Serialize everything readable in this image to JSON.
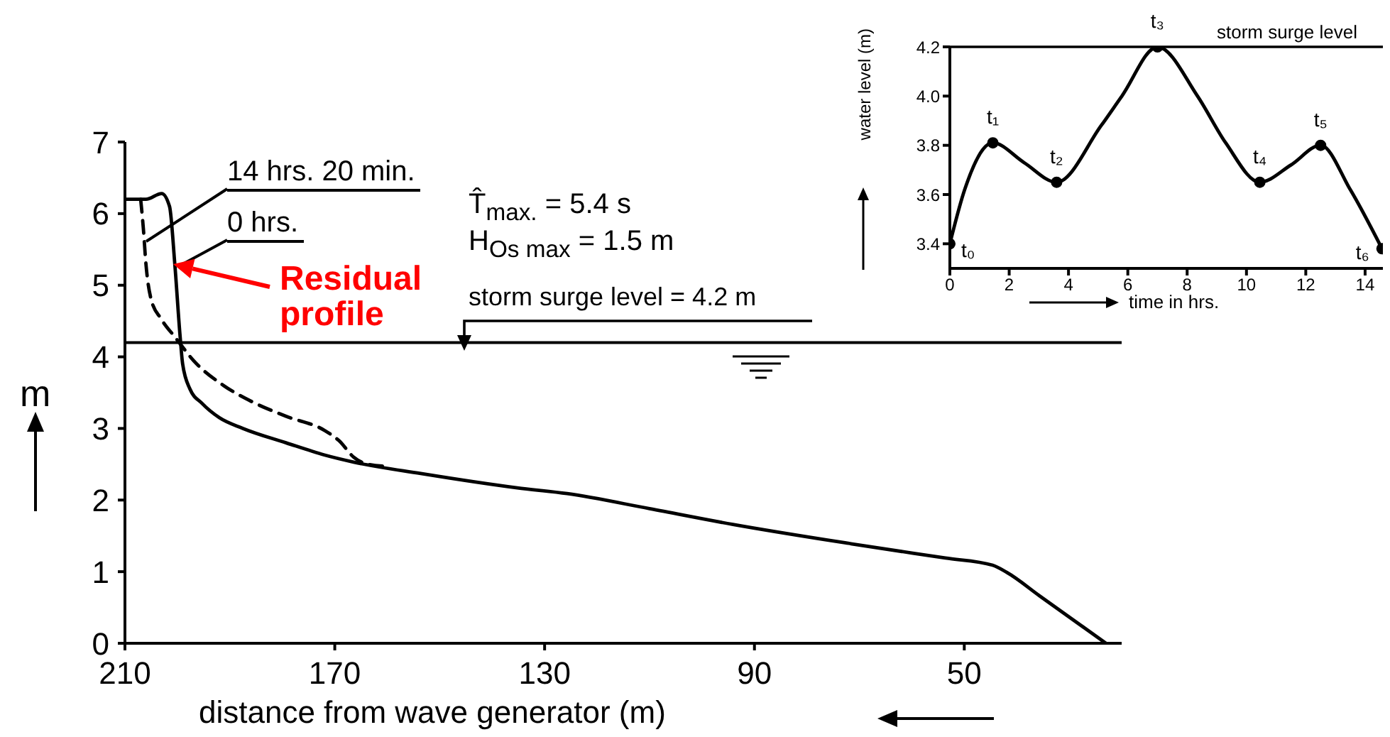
{
  "chart_data": [
    {
      "type": "line",
      "xlabel": "distance from wave generator (m)",
      "ylabel": "m",
      "xlim": [
        210,
        20
      ],
      "xticks": [
        210,
        170,
        130,
        90,
        50
      ],
      "ylim": [
        0,
        7
      ],
      "yticks": [
        0,
        1,
        2,
        3,
        4,
        5,
        6,
        7
      ],
      "grid": false,
      "legend": false,
      "marker": "none",
      "line_style": "solid",
      "series": [
        {
          "name": "14 hrs. 20 min.",
          "color": "#000000",
          "line_style": "dashed",
          "x": [
            207,
            206.5,
            206,
            205,
            203.1,
            200.4,
            196.7,
            191.2,
            185.7,
            179.3,
            171.9,
            169.2,
            166.4,
            163.7,
            160
          ],
          "values": [
            6.2,
            5.8,
            5.3,
            4.8,
            4.53,
            4.27,
            3.93,
            3.6,
            3.37,
            3.17,
            2.97,
            2.83,
            2.6,
            2.5,
            2.47
          ]
        },
        {
          "name": "0 hrs.",
          "color": "#000000",
          "x": [
            210,
            206,
            203,
            201.5,
            200.5,
            199.5,
            199,
            197.6,
            195.3,
            192,
            187.5,
            179.3,
            172,
            166.4,
            153.6,
            135.2,
            125.7,
            110,
            94.1,
            71.6,
            53.6,
            44.6,
            41.9,
            35.6,
            23
          ],
          "values": [
            6.2,
            6.2,
            6.28,
            6.1,
            5.3,
            4.3,
            3.9,
            3.55,
            3.35,
            3.15,
            3.0,
            2.8,
            2.63,
            2.53,
            2.37,
            2.17,
            2.09,
            1.88,
            1.66,
            1.39,
            1.19,
            1.09,
            0.99,
            0.66,
            0
          ]
        }
      ],
      "ref_lines": [
        {
          "axis": "y",
          "value": 4.2,
          "label": "storm surge level = 4.2 m"
        }
      ],
      "annotations": [
        "T̂$_{max.}$ = 5.4 s",
        "H$_{Os max}$ = 1.5 m",
        "Residual profile"
      ]
    },
    {
      "type": "line",
      "xlabel": "time in hrs.",
      "ylabel": "water level (m)",
      "xlim": [
        0,
        14.6
      ],
      "xticks": [
        0,
        2,
        4,
        6,
        8,
        10,
        12,
        14
      ],
      "ylim": [
        3.3,
        4.2
      ],
      "yticks": [
        3.4,
        3.6,
        3.8,
        {
          "value": 4,
          "label": "4.0"
        },
        4.2
      ],
      "grid": false,
      "legend": false,
      "marker": "none",
      "series": [
        {
          "color": "#000000",
          "x": [
            0,
            0.5,
            1.45,
            2.5,
            3.6,
            5.1,
            5.8,
            7,
            8.35,
            9.3,
            10.45,
            11.5,
            12.5,
            13.5,
            14.57
          ],
          "values": [
            3.4,
            3.62,
            3.81,
            3.73,
            3.65,
            3.88,
            4.0,
            4.2,
            4.0,
            3.81,
            3.65,
            3.72,
            3.8,
            3.62,
            3.38
          ]
        },
        {
          "type": "scatter",
          "color": "#000000",
          "marker": "circle",
          "x": [
            0,
            1.45,
            3.6,
            7,
            10.45,
            12.5,
            14.57
          ],
          "values": [
            3.4,
            3.81,
            3.65,
            4.2,
            3.65,
            3.8,
            3.38
          ],
          "value_labels": [
            "t₀",
            "t₁",
            "t₂",
            "t₃",
            "t₄",
            "t₅",
            "t₆"
          ]
        }
      ],
      "ref_lines": [
        {
          "axis": "y",
          "value": 4.2,
          "label": "storm surge level"
        }
      ]
    }
  ]
}
